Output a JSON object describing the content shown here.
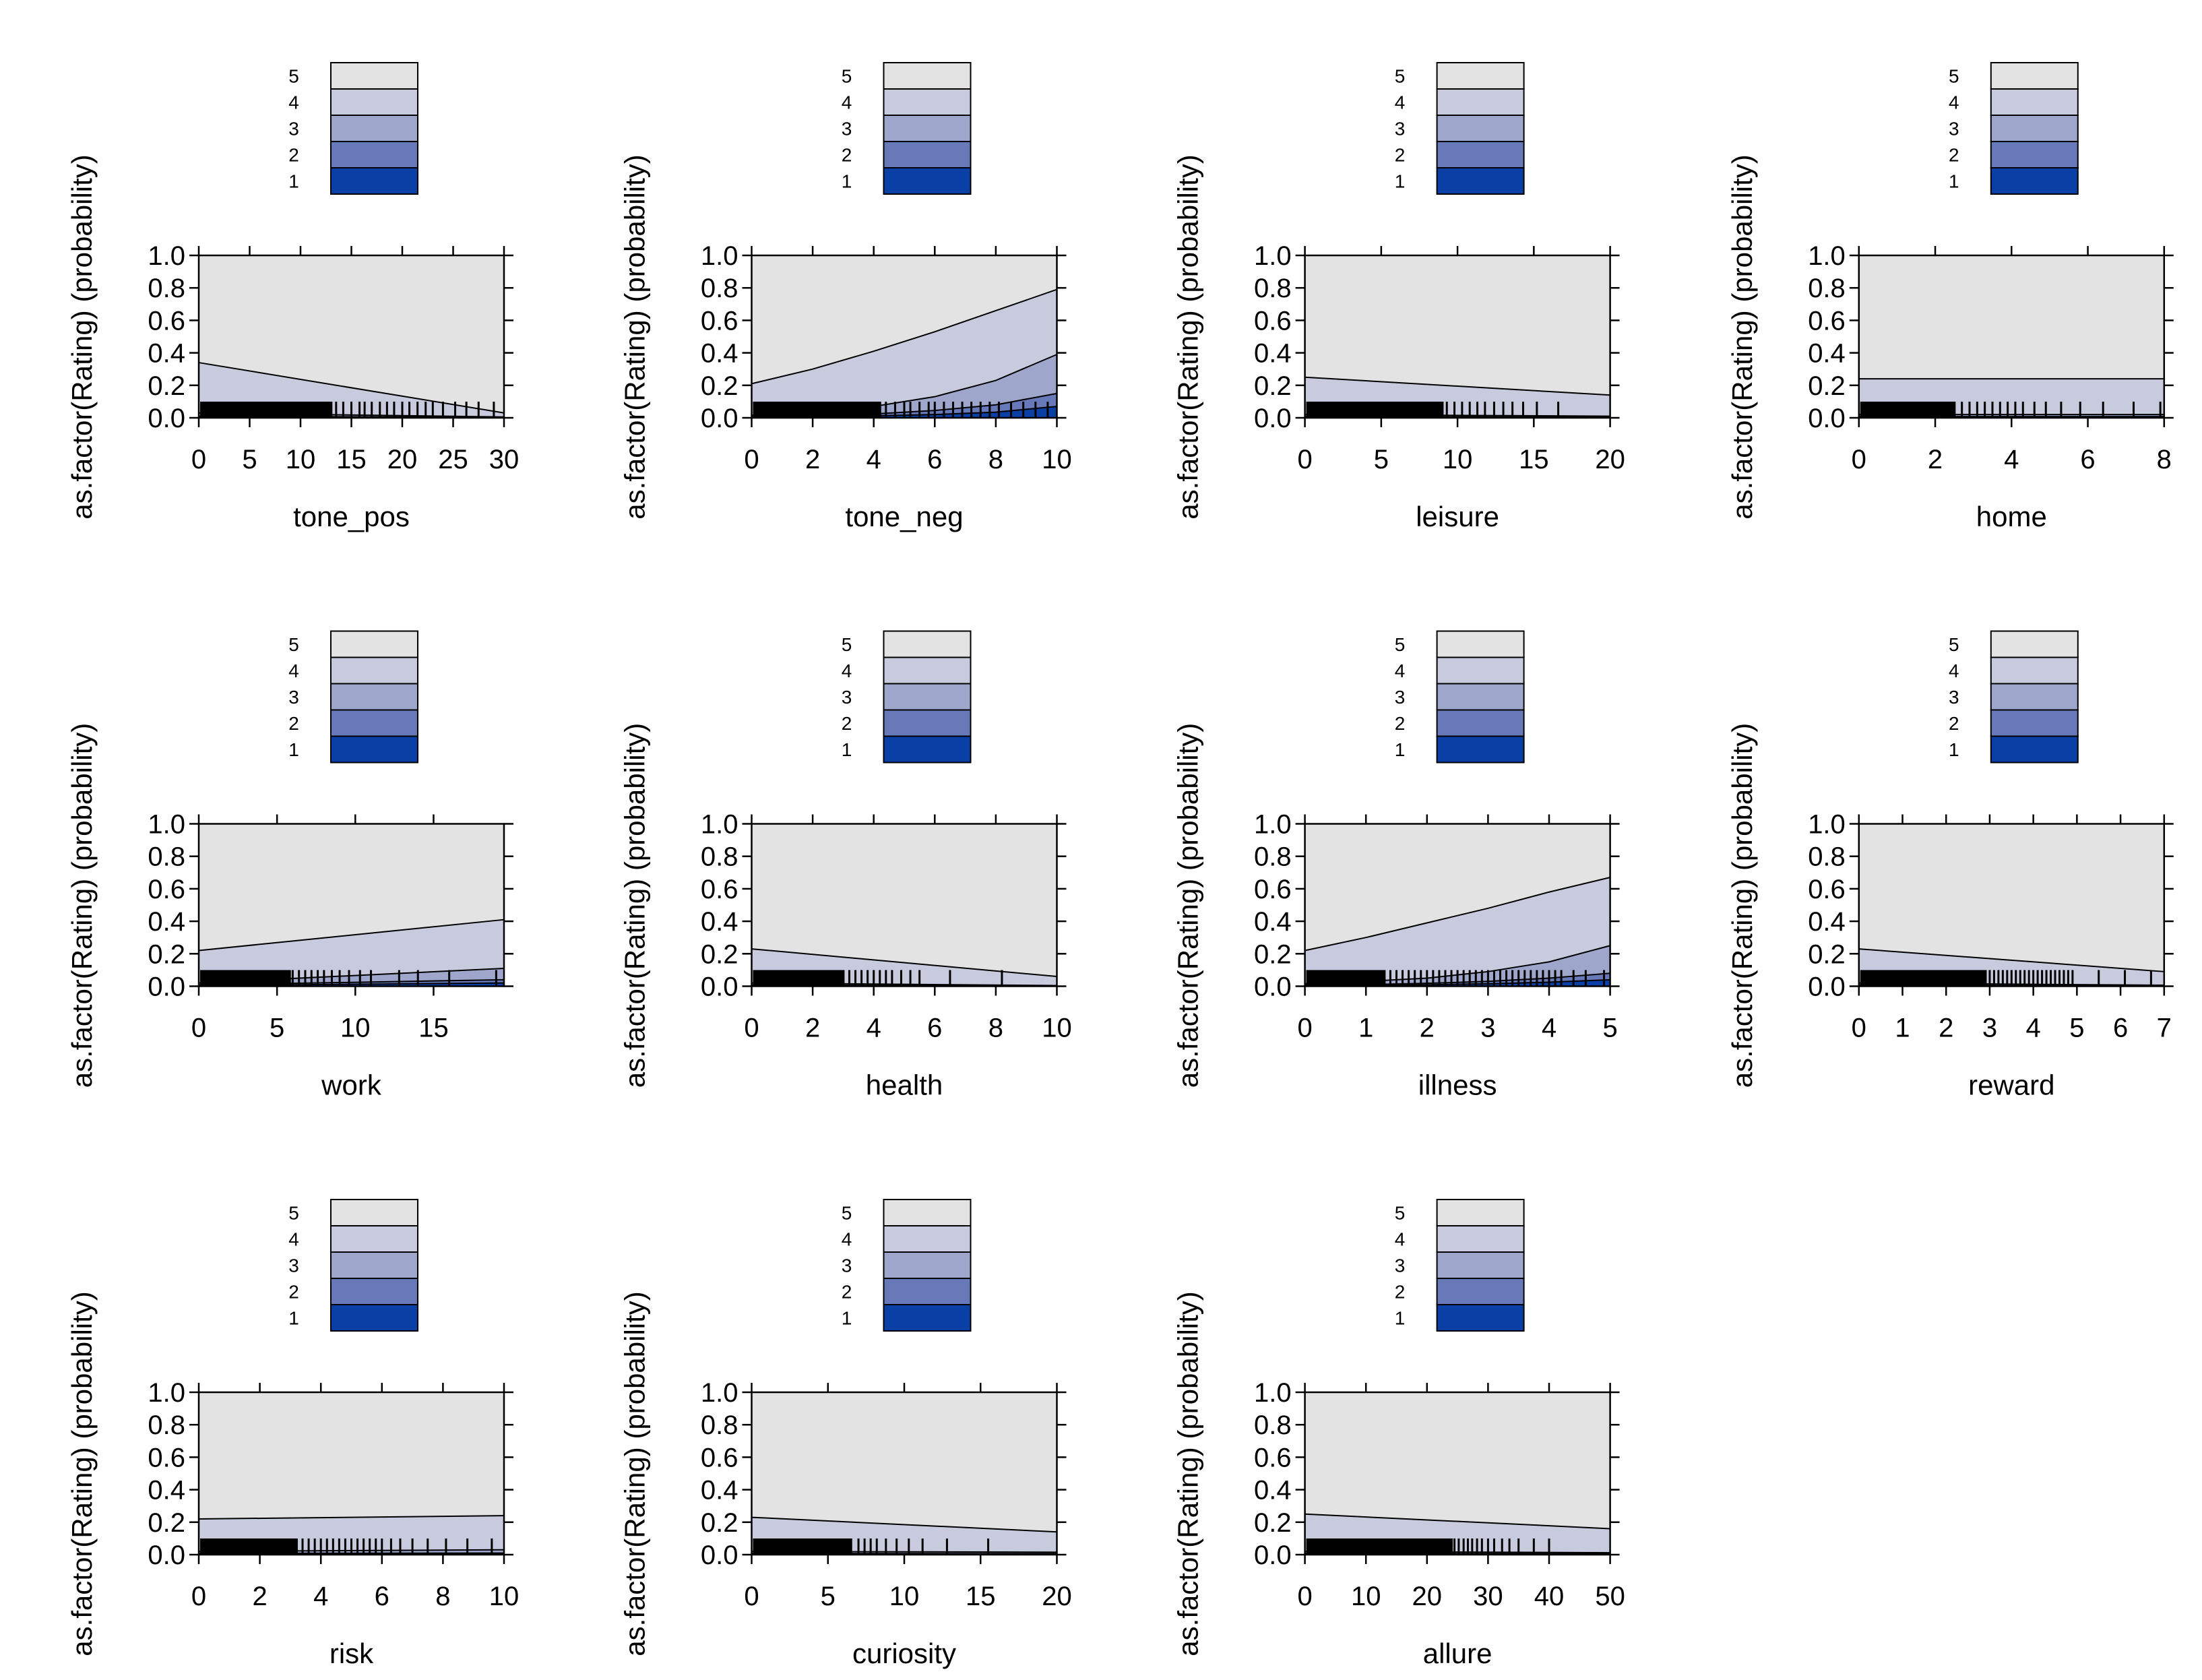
{
  "colors": {
    "rating_1": "#0a3fa5",
    "rating_2": "#6779b8",
    "rating_3": "#9ea6cc",
    "rating_4": "#c8cbdd",
    "rating_5": "#e3e3e3",
    "outline": "#000000",
    "background": "#ffffff"
  },
  "chart_data": [
    {
      "type": "area",
      "title": "",
      "ylabel": "as.factor(Rating) (probability)",
      "xlabel": "tone_pos",
      "xlim": [
        0,
        30
      ],
      "ylim": [
        0,
        1
      ],
      "xticks": [
        0,
        5,
        10,
        15,
        20,
        25,
        30
      ],
      "yticks": [
        0.0,
        0.2,
        0.4,
        0.6,
        0.8,
        1.0
      ],
      "legend": [
        "5",
        "4",
        "3",
        "2",
        "1"
      ],
      "legend_position": "top",
      "grid": false,
      "x": [
        0,
        30
      ],
      "cumulative": {
        "le1": [
          0.005,
          0.001
        ],
        "le2": [
          0.01,
          0.003
        ],
        "le3": [
          0.03,
          0.005
        ],
        "le4": [
          0.34,
          0.03
        ]
      },
      "rug_dense_max": 13,
      "rug": [
        13.5,
        14.2,
        15,
        15.8,
        16.3,
        17,
        17.8,
        18.5,
        19.2,
        20,
        20.7,
        21.5,
        22.3,
        23,
        24,
        25.2,
        26.3,
        27.5,
        29
      ]
    },
    {
      "type": "area",
      "title": "",
      "ylabel": "as.factor(Rating) (probability)",
      "xlabel": "tone_neg",
      "xlim": [
        0,
        10
      ],
      "ylim": [
        0,
        1
      ],
      "xticks": [
        0,
        2,
        4,
        6,
        8,
        10
      ],
      "yticks": [
        0.0,
        0.2,
        0.4,
        0.6,
        0.8,
        1.0
      ],
      "legend": [
        "5",
        "4",
        "3",
        "2",
        "1"
      ],
      "legend_position": "top",
      "grid": false,
      "x": [
        0,
        2,
        4,
        6,
        8,
        10
      ],
      "cumulative": {
        "le1": [
          0.003,
          0.006,
          0.012,
          0.02,
          0.035,
          0.07
        ],
        "le2": [
          0.006,
          0.012,
          0.024,
          0.045,
          0.08,
          0.15
        ],
        "le3": [
          0.015,
          0.035,
          0.07,
          0.13,
          0.23,
          0.39
        ],
        "le4": [
          0.21,
          0.3,
          0.41,
          0.53,
          0.66,
          0.79
        ]
      },
      "rug_dense_max": 4.2,
      "rug": [
        4.4,
        4.7,
        5,
        5.2,
        5.5,
        5.8,
        6,
        6.3,
        6.6,
        6.9,
        7.2,
        7.5,
        7.8,
        8.1,
        8.5,
        8.9,
        9.3,
        9.7
      ]
    },
    {
      "type": "area",
      "title": "",
      "ylabel": "as.factor(Rating) (probability)",
      "xlabel": "leisure",
      "xlim": [
        0,
        20
      ],
      "ylim": [
        0,
        1
      ],
      "xticks": [
        0,
        5,
        10,
        15,
        20
      ],
      "yticks": [
        0.0,
        0.2,
        0.4,
        0.6,
        0.8,
        1.0
      ],
      "legend": [
        "5",
        "4",
        "3",
        "2",
        "1"
      ],
      "legend_position": "top",
      "grid": false,
      "x": [
        0,
        20
      ],
      "cumulative": {
        "le1": [
          0.004,
          0.002
        ],
        "le2": [
          0.008,
          0.004
        ],
        "le3": [
          0.02,
          0.01
        ],
        "le4": [
          0.25,
          0.14
        ]
      },
      "rug_dense_max": 9,
      "rug": [
        9.3,
        9.8,
        10.3,
        10.8,
        11.3,
        11.8,
        12.4,
        13,
        13.6,
        14.3,
        15.2,
        16.6
      ]
    },
    {
      "type": "area",
      "title": "",
      "ylabel": "as.factor(Rating) (probability)",
      "xlabel": "home",
      "xlim": [
        0,
        8
      ],
      "ylim": [
        0,
        1
      ],
      "xticks": [
        0,
        2,
        4,
        6,
        8
      ],
      "yticks": [
        0.0,
        0.2,
        0.4,
        0.6,
        0.8,
        1.0
      ],
      "legend": [
        "5",
        "4",
        "3",
        "2",
        "1"
      ],
      "legend_position": "top",
      "grid": false,
      "x": [
        0,
        8
      ],
      "cumulative": {
        "le1": [
          0.004,
          0.004
        ],
        "le2": [
          0.008,
          0.008
        ],
        "le3": [
          0.02,
          0.02
        ],
        "le4": [
          0.24,
          0.24
        ]
      },
      "rug_dense_max": 2.5,
      "rug": [
        2.7,
        2.9,
        3.1,
        3.3,
        3.5,
        3.7,
        3.9,
        4.1,
        4.3,
        4.6,
        4.9,
        5.3,
        5.8,
        6.4,
        7.2,
        7.9
      ]
    },
    {
      "type": "area",
      "title": "",
      "ylabel": "as.factor(Rating) (probability)",
      "xlabel": "work",
      "xlim": [
        0,
        19.5
      ],
      "ylim": [
        0,
        1
      ],
      "xticks": [
        0,
        5,
        10,
        15
      ],
      "yticks": [
        0.0,
        0.2,
        0.4,
        0.6,
        0.8,
        1.0
      ],
      "legend": [
        "5",
        "4",
        "3",
        "2",
        "1"
      ],
      "legend_position": "top",
      "grid": false,
      "x": [
        0,
        19.5
      ],
      "cumulative": {
        "le1": [
          0.004,
          0.02
        ],
        "le2": [
          0.008,
          0.04
        ],
        "le3": [
          0.02,
          0.11
        ],
        "le4": [
          0.22,
          0.41
        ]
      },
      "rug_dense_max": 5.8,
      "rug": [
        6,
        6.4,
        6.8,
        7.2,
        7.6,
        8,
        8.5,
        9,
        9.6,
        10.3,
        11,
        12.8,
        14,
        16,
        19
      ]
    },
    {
      "type": "area",
      "title": "",
      "ylabel": "as.factor(Rating) (probability)",
      "xlabel": "health",
      "xlim": [
        0,
        10
      ],
      "ylim": [
        0,
        1
      ],
      "xticks": [
        0,
        2,
        4,
        6,
        8,
        10
      ],
      "yticks": [
        0.0,
        0.2,
        0.4,
        0.6,
        0.8,
        1.0
      ],
      "legend": [
        "5",
        "4",
        "3",
        "2",
        "1"
      ],
      "legend_position": "top",
      "grid": false,
      "x": [
        0,
        10
      ],
      "cumulative": {
        "le1": [
          0.004,
          0.001
        ],
        "le2": [
          0.008,
          0.002
        ],
        "le3": [
          0.02,
          0.004
        ],
        "le4": [
          0.23,
          0.06
        ]
      },
      "rug_dense_max": 3,
      "rug": [
        3.2,
        3.4,
        3.6,
        3.8,
        4,
        4.2,
        4.4,
        4.6,
        4.9,
        5.2,
        5.5,
        6.5,
        8.2
      ]
    },
    {
      "type": "area",
      "title": "",
      "ylabel": "as.factor(Rating) (probability)",
      "xlabel": "illness",
      "xlim": [
        0,
        5
      ],
      "ylim": [
        0,
        1
      ],
      "xticks": [
        0,
        1,
        2,
        3,
        4,
        5
      ],
      "yticks": [
        0.0,
        0.2,
        0.4,
        0.6,
        0.8,
        1.0
      ],
      "legend": [
        "5",
        "4",
        "3",
        "2",
        "1"
      ],
      "legend_position": "top",
      "grid": false,
      "x": [
        0,
        1,
        2,
        3,
        4,
        5
      ],
      "cumulative": {
        "le1": [
          0.003,
          0.005,
          0.009,
          0.015,
          0.025,
          0.04
        ],
        "le2": [
          0.006,
          0.01,
          0.018,
          0.03,
          0.05,
          0.08
        ],
        "le3": [
          0.015,
          0.03,
          0.05,
          0.09,
          0.15,
          0.25
        ],
        "le4": [
          0.22,
          0.3,
          0.39,
          0.48,
          0.58,
          0.67
        ]
      },
      "rug_dense_max": 1.3,
      "rug": [
        1.4,
        1.5,
        1.6,
        1.7,
        1.8,
        1.9,
        2,
        2.1,
        2.2,
        2.3,
        2.4,
        2.5,
        2.6,
        2.7,
        2.8,
        2.9,
        3,
        3.1,
        3.2,
        3.3,
        3.4,
        3.5,
        3.6,
        3.7,
        3.8,
        3.9,
        4,
        4.1,
        4.2,
        4.4,
        4.6,
        4.9
      ]
    },
    {
      "type": "area",
      "title": "",
      "ylabel": "as.factor(Rating) (probability)",
      "xlabel": "reward",
      "xlim": [
        0,
        7
      ],
      "ylim": [
        0,
        1
      ],
      "xticks": [
        0,
        1,
        2,
        3,
        4,
        5,
        6,
        7
      ],
      "yticks": [
        0.0,
        0.2,
        0.4,
        0.6,
        0.8,
        1.0
      ],
      "legend": [
        "5",
        "4",
        "3",
        "2",
        "1"
      ],
      "legend_position": "top",
      "grid": false,
      "x": [
        0,
        7
      ],
      "cumulative": {
        "le1": [
          0.004,
          0.001
        ],
        "le2": [
          0.008,
          0.002
        ],
        "le3": [
          0.02,
          0.006
        ],
        "le4": [
          0.23,
          0.09
        ]
      },
      "rug_dense_max": 2.9,
      "rug": [
        3,
        3.1,
        3.2,
        3.3,
        3.4,
        3.5,
        3.6,
        3.7,
        3.8,
        3.9,
        4,
        4.1,
        4.2,
        4.3,
        4.4,
        4.5,
        4.6,
        4.7,
        4.8,
        4.9,
        5.5,
        6.1,
        6.7
      ]
    },
    {
      "type": "area",
      "title": "",
      "ylabel": "as.factor(Rating) (probability)",
      "xlabel": "risk",
      "xlim": [
        0,
        10
      ],
      "ylim": [
        0,
        1
      ],
      "xticks": [
        0,
        2,
        4,
        6,
        8,
        10
      ],
      "yticks": [
        0.0,
        0.2,
        0.4,
        0.6,
        0.8,
        1.0
      ],
      "legend": [
        "5",
        "4",
        "3",
        "2",
        "1"
      ],
      "legend_position": "top",
      "grid": false,
      "x": [
        0,
        10
      ],
      "cumulative": {
        "le1": [
          0.004,
          0.005
        ],
        "le2": [
          0.008,
          0.01
        ],
        "le3": [
          0.02,
          0.03
        ],
        "le4": [
          0.22,
          0.24
        ]
      },
      "rug_dense_max": 3.2,
      "rug": [
        3.4,
        3.6,
        3.8,
        4,
        4.2,
        4.4,
        4.6,
        4.8,
        5,
        5.2,
        5.4,
        5.6,
        5.8,
        6,
        6.3,
        6.6,
        7,
        7.5,
        8.1,
        8.8,
        9.6
      ]
    },
    {
      "type": "area",
      "title": "",
      "ylabel": "as.factor(Rating) (probability)",
      "xlabel": "curiosity",
      "xlim": [
        0,
        20
      ],
      "ylim": [
        0,
        1
      ],
      "xticks": [
        0,
        5,
        10,
        15,
        20
      ],
      "yticks": [
        0.0,
        0.2,
        0.4,
        0.6,
        0.8,
        1.0
      ],
      "legend": [
        "5",
        "4",
        "3",
        "2",
        "1"
      ],
      "legend_position": "top",
      "grid": false,
      "x": [
        0,
        20
      ],
      "cumulative": {
        "le1": [
          0.004,
          0.003
        ],
        "le2": [
          0.008,
          0.006
        ],
        "le3": [
          0.02,
          0.015
        ],
        "le4": [
          0.23,
          0.14
        ]
      },
      "rug_dense_max": 6.5,
      "rug": [
        7,
        7.4,
        7.8,
        8.2,
        8.8,
        9.5,
        10.3,
        11.2,
        12.8,
        15.5
      ]
    },
    {
      "type": "area",
      "title": "",
      "ylabel": "as.factor(Rating) (probability)",
      "xlabel": "allure",
      "xlim": [
        0,
        50
      ],
      "ylim": [
        0,
        1
      ],
      "xticks": [
        0,
        10,
        20,
        30,
        40,
        50
      ],
      "yticks": [
        0.0,
        0.2,
        0.4,
        0.6,
        0.8,
        1.0
      ],
      "legend": [
        "5",
        "4",
        "3",
        "2",
        "1"
      ],
      "legend_position": "top",
      "grid": false,
      "x": [
        0,
        50
      ],
      "cumulative": {
        "le1": [
          0.004,
          0.002
        ],
        "le2": [
          0.008,
          0.005
        ],
        "le3": [
          0.02,
          0.012
        ],
        "le4": [
          0.25,
          0.16
        ]
      },
      "rug_dense_max": 24,
      "rug": [
        24.5,
        25.2,
        26,
        26.7,
        27.4,
        28.2,
        29,
        30,
        31,
        32.3,
        33.5,
        35,
        37.5,
        40
      ]
    }
  ]
}
